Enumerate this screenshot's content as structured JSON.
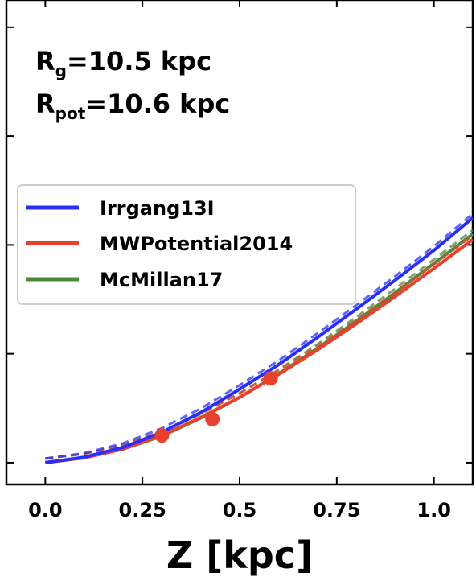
{
  "chart_data": {
    "type": "line",
    "xlabel": "Z [kpc]",
    "ylabel": "",
    "xlim": [
      -0.1,
      1.1
    ],
    "ylim": [
      -0.04,
      0.85
    ],
    "x_ticks": [
      "0.0",
      "0.25",
      "0.5",
      "0.75",
      "1.0"
    ],
    "x_tick_values": [
      0.0,
      0.25,
      0.5,
      0.75,
      1.0
    ],
    "y_tick_values": [
      0.0,
      0.2,
      0.4,
      0.6,
      0.8
    ],
    "annotations": {
      "line1_main": "R",
      "line1_sub": "g",
      "line1_rest": "=10.5 kpc",
      "line2_main": "R",
      "line2_sub": "pot",
      "line2_rest": "=10.6 kpc"
    },
    "legend_placement": "center-left",
    "series": [
      {
        "name": "Irrgang13I",
        "color": "#2a2ff5",
        "x": [
          0.0,
          0.1,
          0.2,
          0.3,
          0.4,
          0.5,
          0.6,
          0.7,
          0.8,
          0.9,
          1.0,
          1.1
        ],
        "y": [
          0.0,
          0.01,
          0.028,
          0.056,
          0.092,
          0.135,
          0.18,
          0.23,
          0.282,
          0.335,
          0.39,
          0.45
        ]
      },
      {
        "name": "MWPotential2014",
        "color": "#e8412e",
        "x": [
          0.0,
          0.1,
          0.2,
          0.3,
          0.4,
          0.5,
          0.6,
          0.7,
          0.8,
          0.9,
          1.0,
          1.1
        ],
        "y": [
          0.0,
          0.009,
          0.025,
          0.05,
          0.083,
          0.12,
          0.162,
          0.207,
          0.255,
          0.305,
          0.357,
          0.41
        ]
      },
      {
        "name": "McMillan17",
        "color": "#4a8a3a",
        "x": [
          0.0,
          0.1,
          0.2,
          0.3,
          0.4,
          0.5,
          0.6,
          0.7,
          0.8,
          0.9,
          1.0,
          1.1
        ],
        "y": [
          0.0,
          0.009,
          0.025,
          0.049,
          0.082,
          0.12,
          0.163,
          0.21,
          0.26,
          0.312,
          0.366,
          0.42
        ]
      }
    ],
    "data_points": {
      "color": "#e8412e",
      "x": [
        0.3,
        0.43,
        0.58
      ],
      "y": [
        0.05,
        0.08,
        0.155
      ],
      "yerr": [
        0.005,
        0.005,
        0.012
      ]
    }
  }
}
